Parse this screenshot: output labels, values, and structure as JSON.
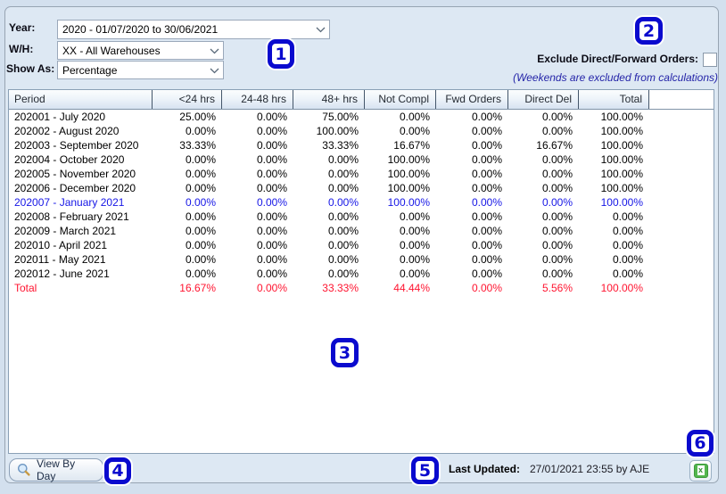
{
  "filters": {
    "year": {
      "label": "Year:",
      "value": "2020 - 01/07/2020 to 30/06/2021"
    },
    "warehouse": {
      "label": "W/H:",
      "value": "XX - All Warehouses"
    },
    "show_as": {
      "label": "Show As:",
      "value": "Percentage"
    },
    "exclude_direct_forward": {
      "label": "Exclude Direct/Forward Orders:",
      "checked": false
    },
    "weekends_note": "(Weekends are excluded from calculations)"
  },
  "table": {
    "columns": [
      "Period",
      "<24 hrs",
      "24-48 hrs",
      "48+ hrs",
      "Not Compl",
      "Fwd Orders",
      "Direct Del",
      "Total"
    ],
    "rows": [
      {
        "period": "202001 - July 2020",
        "values": [
          "25.00%",
          "0.00%",
          "75.00%",
          "0.00%",
          "0.00%",
          "0.00%",
          "100.00%"
        ],
        "style": "normal"
      },
      {
        "period": "202002 - August 2020",
        "values": [
          "0.00%",
          "0.00%",
          "100.00%",
          "0.00%",
          "0.00%",
          "0.00%",
          "100.00%"
        ],
        "style": "normal"
      },
      {
        "period": "202003 - September 2020",
        "values": [
          "33.33%",
          "0.00%",
          "33.33%",
          "16.67%",
          "0.00%",
          "16.67%",
          "100.00%"
        ],
        "style": "normal"
      },
      {
        "period": "202004 - October 2020",
        "values": [
          "0.00%",
          "0.00%",
          "0.00%",
          "100.00%",
          "0.00%",
          "0.00%",
          "100.00%"
        ],
        "style": "normal"
      },
      {
        "period": "202005 - November 2020",
        "values": [
          "0.00%",
          "0.00%",
          "0.00%",
          "100.00%",
          "0.00%",
          "0.00%",
          "100.00%"
        ],
        "style": "normal"
      },
      {
        "period": "202006 - December 2020",
        "values": [
          "0.00%",
          "0.00%",
          "0.00%",
          "100.00%",
          "0.00%",
          "0.00%",
          "100.00%"
        ],
        "style": "normal"
      },
      {
        "period": "202007 - January 2021",
        "values": [
          "0.00%",
          "0.00%",
          "0.00%",
          "100.00%",
          "0.00%",
          "0.00%",
          "100.00%"
        ],
        "style": "current"
      },
      {
        "period": "202008 - February 2021",
        "values": [
          "0.00%",
          "0.00%",
          "0.00%",
          "0.00%",
          "0.00%",
          "0.00%",
          "0.00%"
        ],
        "style": "normal"
      },
      {
        "period": "202009 - March 2021",
        "values": [
          "0.00%",
          "0.00%",
          "0.00%",
          "0.00%",
          "0.00%",
          "0.00%",
          "0.00%"
        ],
        "style": "normal"
      },
      {
        "period": "202010 - April 2021",
        "values": [
          "0.00%",
          "0.00%",
          "0.00%",
          "0.00%",
          "0.00%",
          "0.00%",
          "0.00%"
        ],
        "style": "normal"
      },
      {
        "period": "202011 - May 2021",
        "values": [
          "0.00%",
          "0.00%",
          "0.00%",
          "0.00%",
          "0.00%",
          "0.00%",
          "0.00%"
        ],
        "style": "normal"
      },
      {
        "period": "202012 - June 2021",
        "values": [
          "0.00%",
          "0.00%",
          "0.00%",
          "0.00%",
          "0.00%",
          "0.00%",
          "0.00%"
        ],
        "style": "normal"
      },
      {
        "period": "Total",
        "values": [
          "16.67%",
          "0.00%",
          "33.33%",
          "44.44%",
          "0.00%",
          "5.56%",
          "100.00%"
        ],
        "style": "total"
      }
    ]
  },
  "footer": {
    "view_by_day_label": "View By Day",
    "last_updated_label": "Last Updated:",
    "last_updated_value": "27/01/2021 23:55 by AJE"
  },
  "icons": {
    "search": "magnifier-icon",
    "excel": "excel-export-icon",
    "dropdown": "chevron-down-icon"
  },
  "callouts": [
    "1",
    "2",
    "3",
    "4",
    "5",
    "6"
  ],
  "colors": {
    "callout_blue": "#0a0ace",
    "current_period_blue": "#1616e6",
    "total_red": "#ff1430",
    "note_navy": "#2424a8",
    "excel_green": "#53b64e"
  }
}
